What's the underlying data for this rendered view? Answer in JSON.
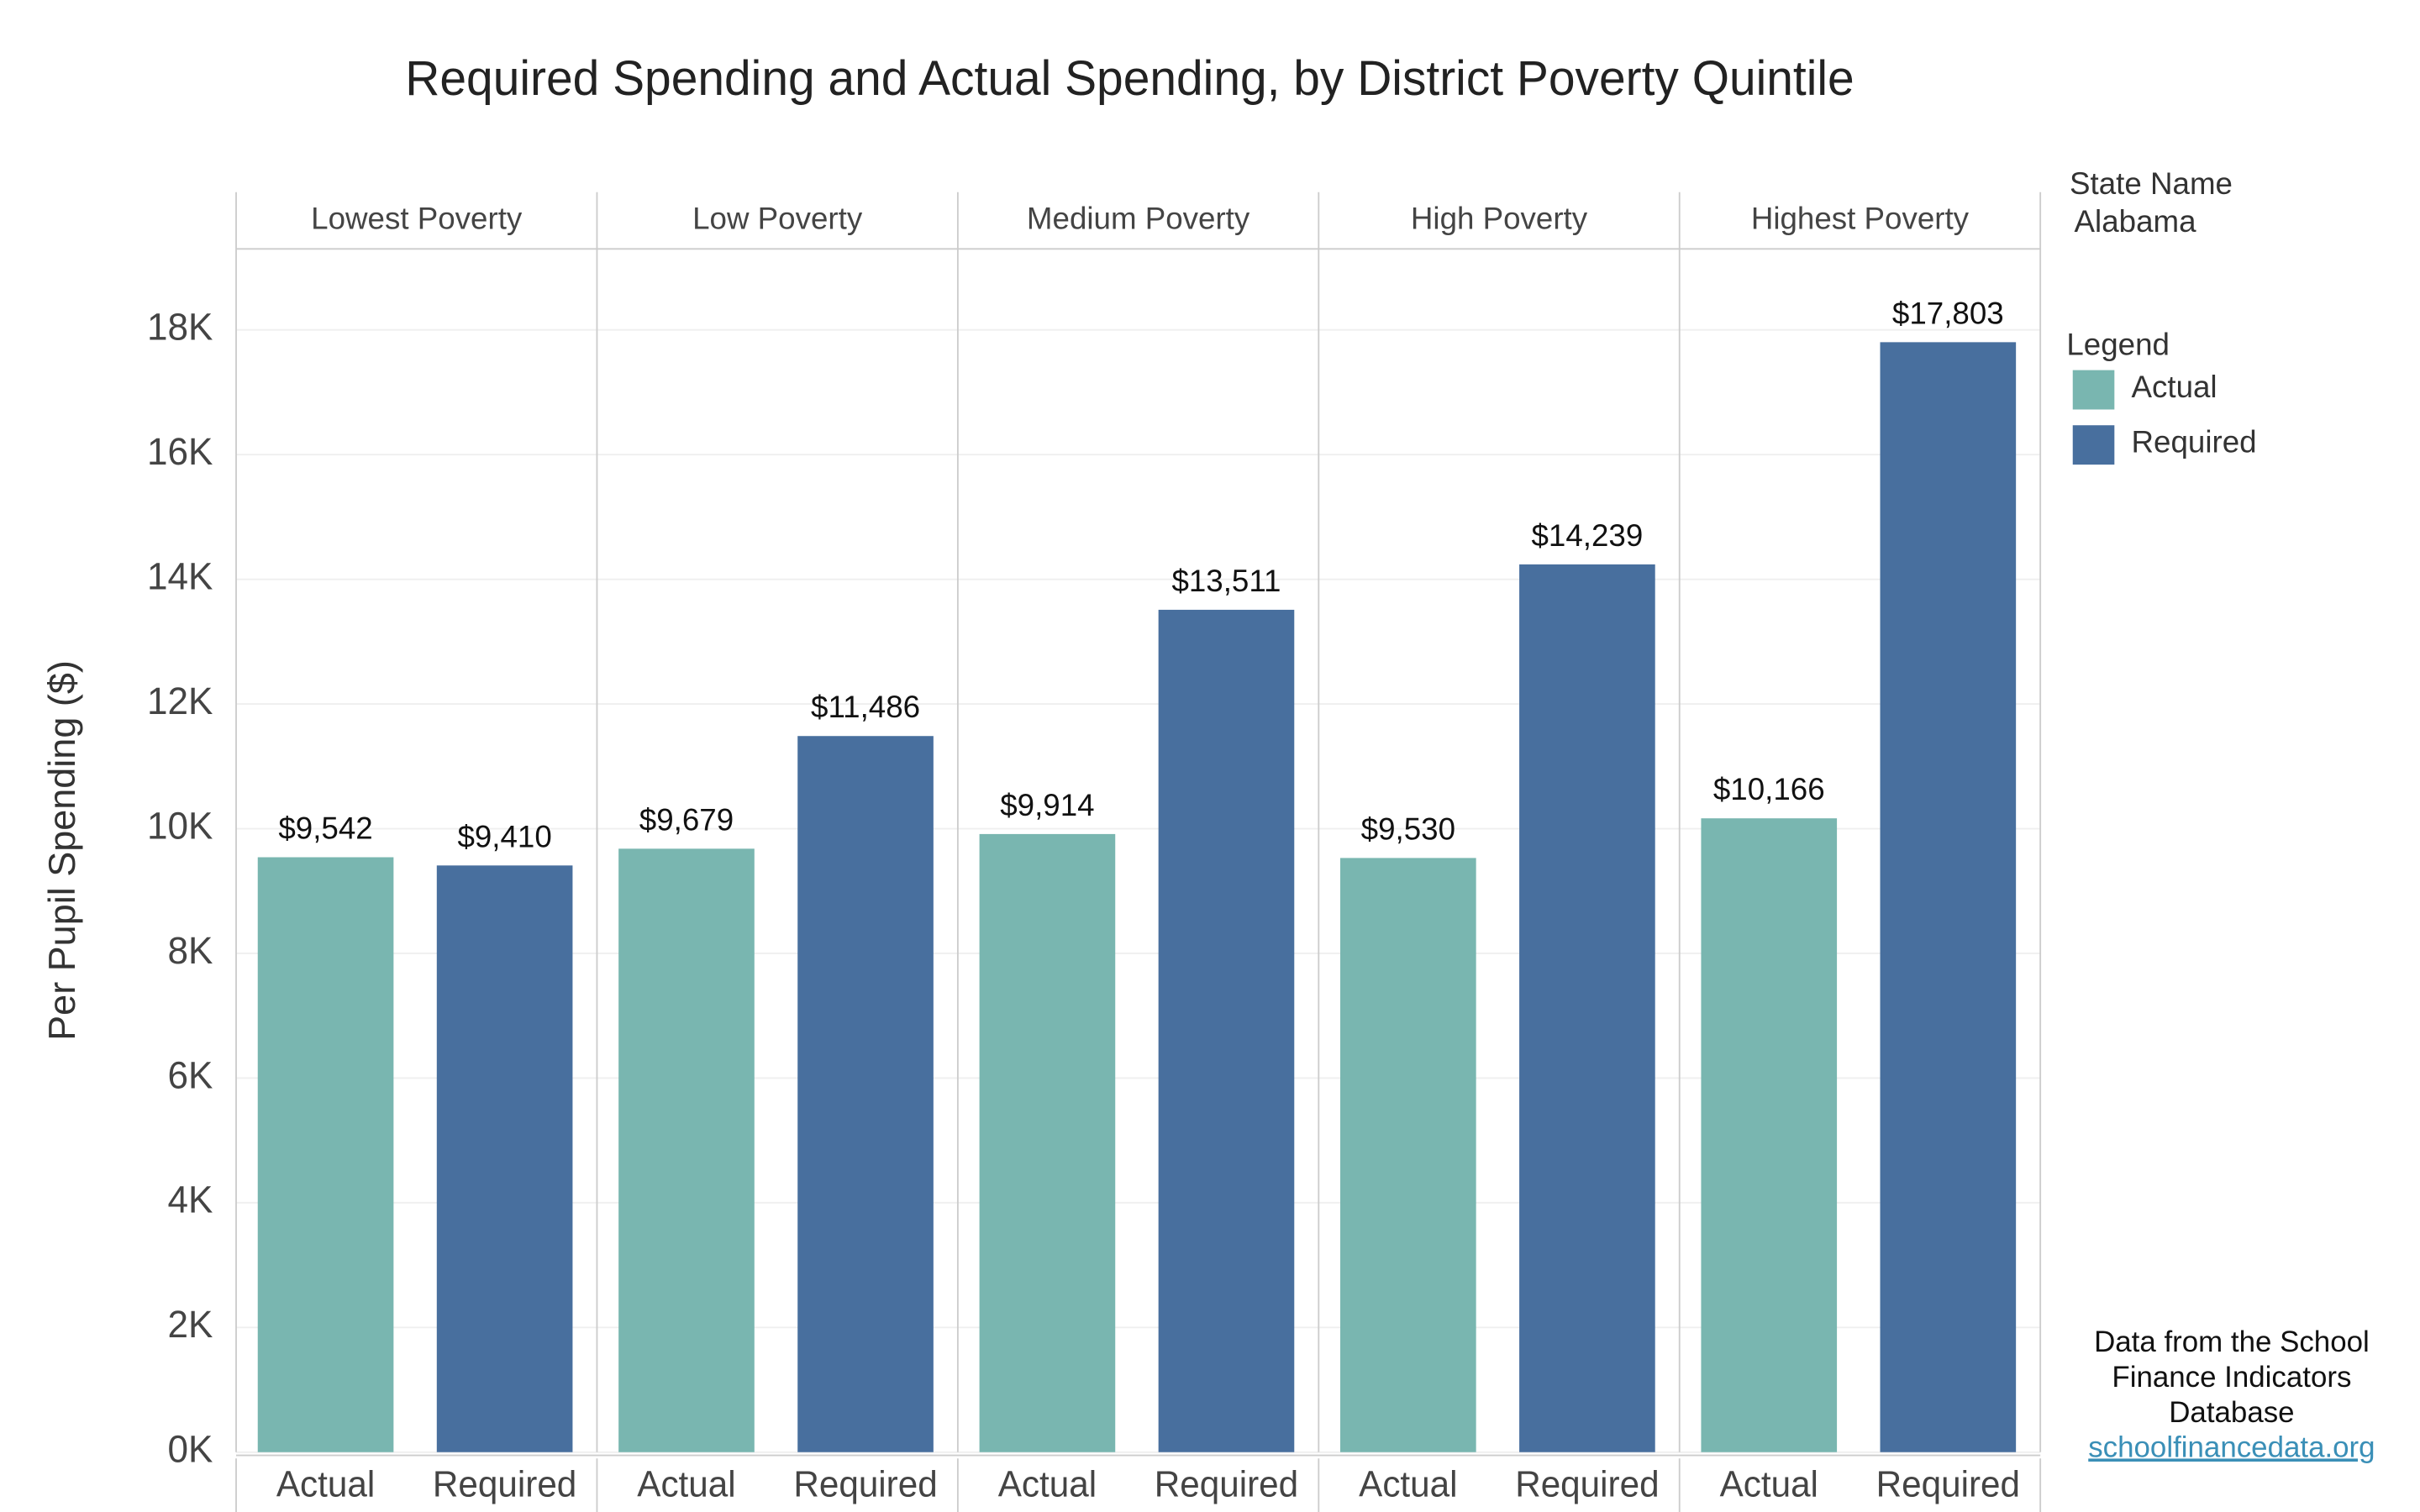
{
  "chart_data": {
    "type": "bar",
    "title": "Required Spending and Actual Spending, by District Poverty Quintile",
    "y_label": "Per Pupil Spending ($)",
    "categories": [
      "Lowest Poverty",
      "Low Poverty",
      "Medium Poverty",
      "High Poverty",
      "Highest Poverty"
    ],
    "series": [
      {
        "name": "Actual",
        "color": "#79b6b0",
        "values": [
          9542,
          9679,
          9914,
          9530,
          10166
        ],
        "value_labels": [
          "$9,542",
          "$9,679",
          "$9,914",
          "$9,530",
          "$10,166"
        ]
      },
      {
        "name": "Required",
        "color": "#486f9e",
        "values": [
          9410,
          11486,
          13511,
          14239,
          17803
        ],
        "value_labels": [
          "$9,410",
          "$11,486",
          "$13,511",
          "$14,239",
          "$17,803"
        ]
      }
    ],
    "ylim": [
      0,
      19300
    ],
    "yticks": [
      {
        "value": 0,
        "label": "0K"
      },
      {
        "value": 2000,
        "label": "2K"
      },
      {
        "value": 4000,
        "label": "4K"
      },
      {
        "value": 6000,
        "label": "6K"
      },
      {
        "value": 8000,
        "label": "8K"
      },
      {
        "value": 10000,
        "label": "10K"
      },
      {
        "value": 12000,
        "label": "12K"
      },
      {
        "value": 14000,
        "label": "14K"
      },
      {
        "value": 16000,
        "label": "16K"
      },
      {
        "value": 18000,
        "label": "18K"
      }
    ],
    "grid": true,
    "filter_title": "State Name",
    "filter_value": "Alabama",
    "legend_title": "Legend",
    "source_lines": [
      "Data from the School",
      "Finance Indicators",
      "Database"
    ],
    "source_link": "schoolfinancedata.org"
  }
}
